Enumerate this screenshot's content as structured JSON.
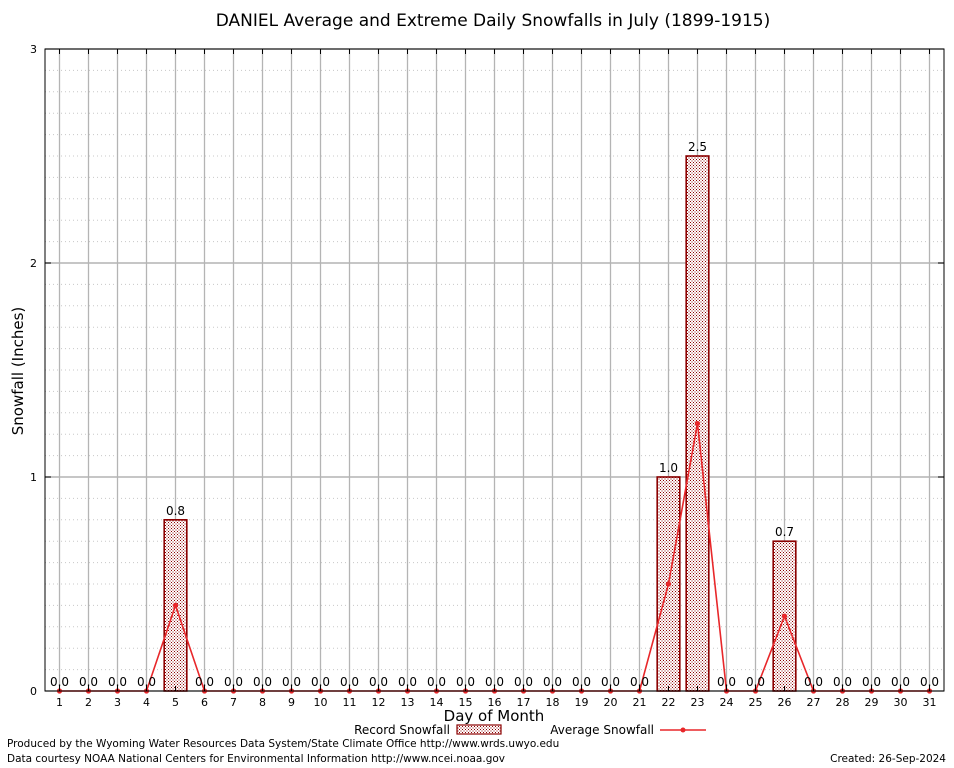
{
  "chart_data": {
    "type": "bar",
    "title": "DANIEL Average and Extreme Daily Snowfalls in July (1899-1915)",
    "xlabel": "Day of Month",
    "ylabel": "Snowfall (Inches)",
    "ylim": [
      0,
      3
    ],
    "yticks": [
      "0",
      "1",
      "2",
      "3"
    ],
    "grid": true,
    "categories": [
      "1",
      "2",
      "3",
      "4",
      "5",
      "6",
      "7",
      "8",
      "9",
      "10",
      "11",
      "12",
      "13",
      "14",
      "15",
      "16",
      "17",
      "18",
      "19",
      "20",
      "21",
      "22",
      "23",
      "24",
      "25",
      "26",
      "27",
      "28",
      "29",
      "30",
      "31"
    ],
    "series": [
      {
        "name": "Record Snowfall",
        "kind": "bar",
        "color": "#8b0000",
        "values": [
          0,
          0,
          0,
          0,
          0.8,
          0,
          0,
          0,
          0,
          0,
          0,
          0,
          0,
          0,
          0,
          0,
          0,
          0,
          0,
          0,
          0,
          1.0,
          2.5,
          0,
          0,
          0.7,
          0,
          0,
          0,
          0,
          0
        ],
        "labels": [
          "0.0",
          "0.0",
          "0.0",
          "0.0",
          "0.8",
          "0.0",
          "0.0",
          "0.0",
          "0.0",
          "0.0",
          "0.0",
          "0.0",
          "0.0",
          "0.0",
          "0.0",
          "0.0",
          "0.0",
          "0.0",
          "0.0",
          "0.0",
          "0.0",
          "1.0",
          "2.5",
          "0.0",
          "0.0",
          "0.7",
          "0.0",
          "0.0",
          "0.0",
          "0.0",
          "0.0"
        ]
      },
      {
        "name": "Average Snowfall",
        "kind": "line",
        "color": "#e8272a",
        "values": [
          0,
          0,
          0,
          0,
          0.4,
          0,
          0,
          0,
          0,
          0,
          0,
          0,
          0,
          0,
          0,
          0,
          0,
          0,
          0,
          0,
          0,
          0.5,
          1.25,
          0,
          0,
          0.35,
          0,
          0,
          0,
          0,
          0
        ]
      }
    ],
    "legend": {
      "placement": "bottom-center"
    }
  },
  "footer": {
    "produced_by": "Produced by the Wyoming Water Resources Data System/State Climate Office http://www.wrds.uwyo.edu",
    "data_courtesy": "Data courtesy NOAA National Centers for Environmental Information http://www.ncei.noaa.gov",
    "created": "Created:  26-Sep-2024"
  }
}
